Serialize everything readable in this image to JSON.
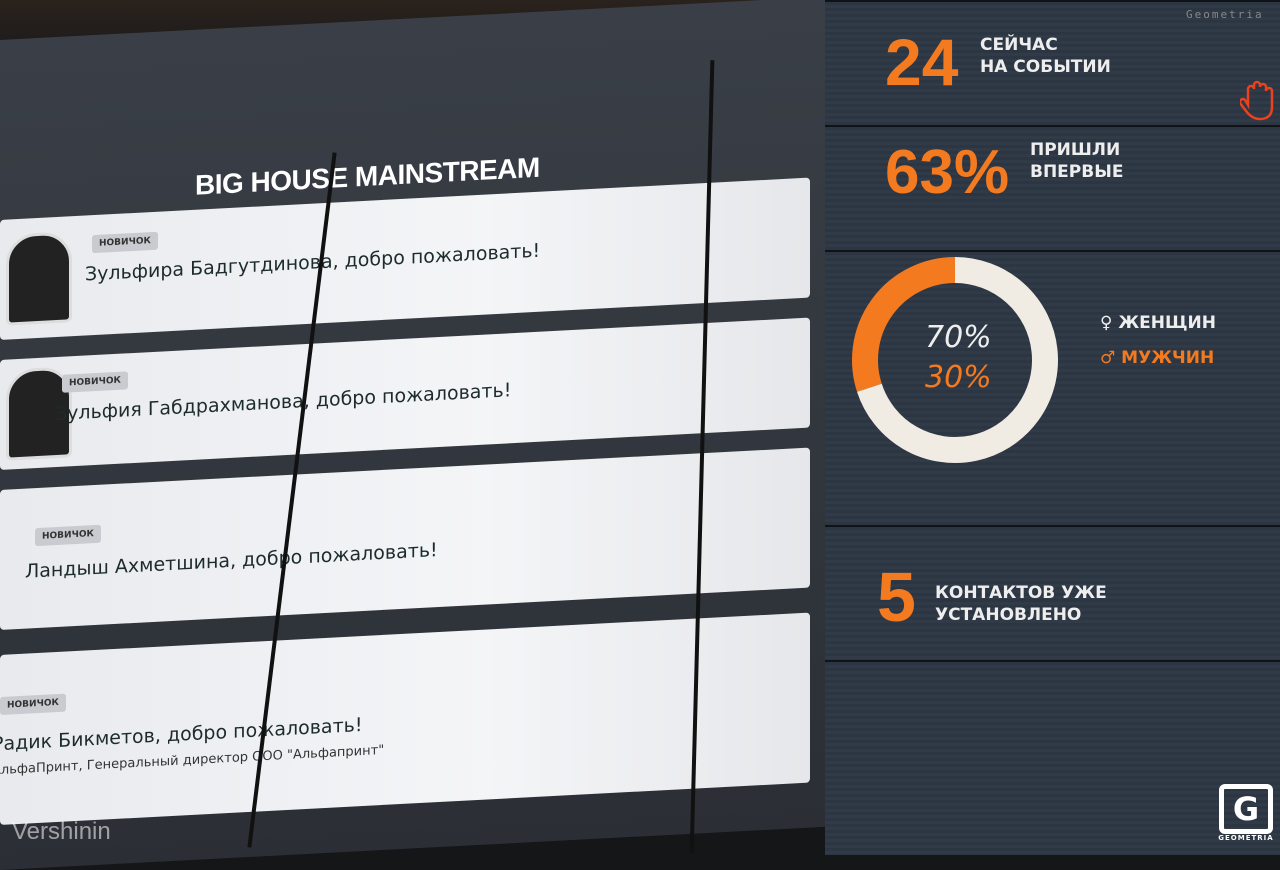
{
  "board": {
    "title": "BIG HOUSE MAINSTREAM",
    "entries": [
      {
        "badge": "НОВИЧОК",
        "name": "Зульфира Бадгутдинова",
        "greeting": ", добро пожаловать!",
        "subtitle": ""
      },
      {
        "badge": "НОВИЧОК",
        "name": "Зульфия Габдрахманова",
        "greeting": ", добро пожаловать!",
        "subtitle": ""
      },
      {
        "badge": "НОВИЧОК",
        "name": "Ландыш Ахметшина",
        "greeting": ", добро пожаловать!",
        "subtitle": ""
      },
      {
        "badge": "НОВИЧОК",
        "name": "Радик Бикметов",
        "greeting": ", добро пожаловать!",
        "subtitle": "АльфаПринт, Генеральный директор ООО \"Альфапринт\""
      }
    ]
  },
  "stats": {
    "now": {
      "value": "24",
      "label_line1": "СЕЙЧАС",
      "label_line2": "НА СОБЫТИИ"
    },
    "first_time": {
      "value": "63%",
      "label_line1": "ПРИШЛИ",
      "label_line2": "ВПЕРВЫЕ"
    },
    "gender": {
      "female_pct": "70%",
      "male_pct": "30%",
      "female_label": "ЖЕНЩИН",
      "male_label": "МУЖЧИН",
      "female_share": 70,
      "male_share": 30,
      "female_color": "#f0ece4",
      "male_color": "#f47a20"
    },
    "contacts": {
      "value": "5",
      "label_line1": "КОНТАКТОВ УЖЕ",
      "label_line2": "УСТАНОВЛЕНО"
    }
  },
  "watermarks": {
    "top_right": "Geometria",
    "bottom_left": "Vershinin",
    "logo": "GEOMETRIA"
  },
  "colors": {
    "accent": "#f47a20"
  }
}
